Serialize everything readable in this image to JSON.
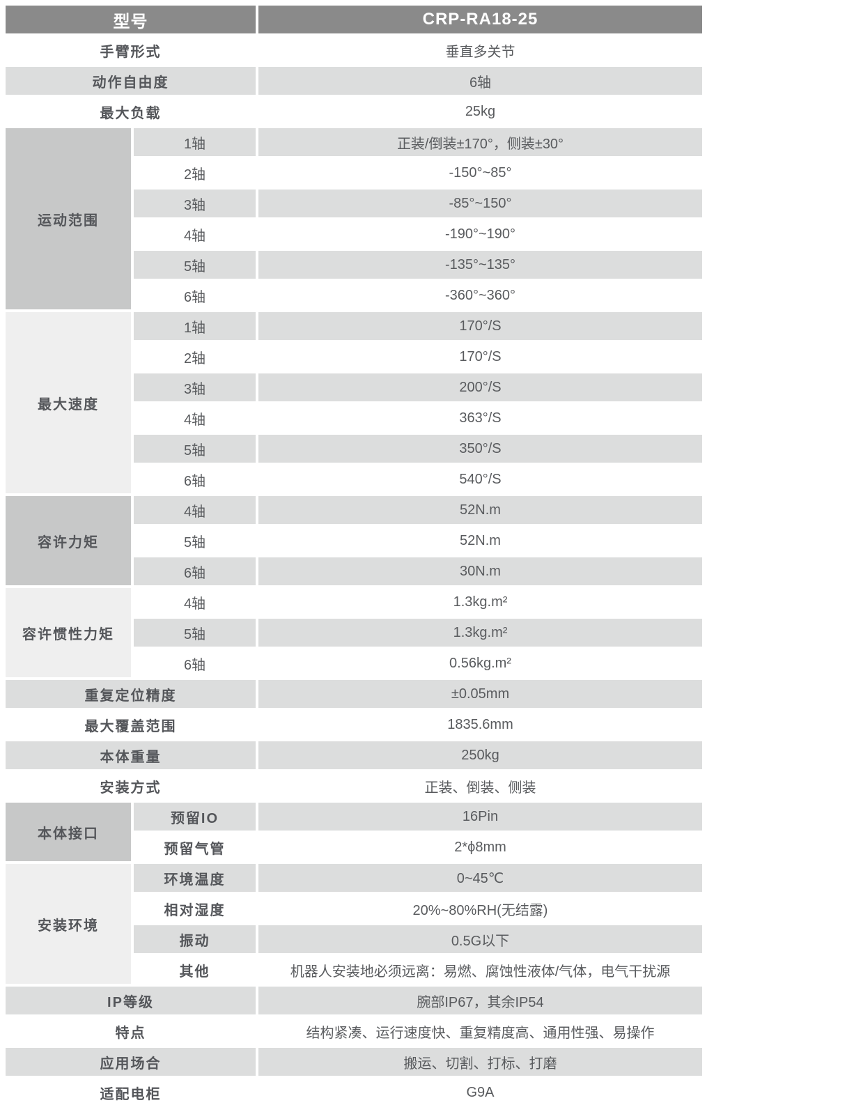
{
  "table": {
    "header": {
      "label": "型号",
      "value": "CRP-RA18-25"
    },
    "sections": [
      {
        "kind": "simple",
        "label": "手臂形式",
        "value": "垂直多关节"
      },
      {
        "kind": "simple",
        "label": "动作自由度",
        "value": "6轴"
      },
      {
        "kind": "simple",
        "label": "最大负载",
        "value": "25kg"
      },
      {
        "kind": "group",
        "label": "运动范围",
        "shade": "dark",
        "bold_sub": false,
        "rows": [
          {
            "sub": "1轴",
            "value": "正装/倒装±170°，侧装±30°"
          },
          {
            "sub": "2轴",
            "value": "-150°~85°"
          },
          {
            "sub": "3轴",
            "value": "-85°~150°"
          },
          {
            "sub": "4轴",
            "value": "-190°~190°"
          },
          {
            "sub": "5轴",
            "value": "-135°~135°"
          },
          {
            "sub": "6轴",
            "value": "-360°~360°"
          }
        ]
      },
      {
        "kind": "group",
        "label": "最大速度",
        "shade": "light",
        "bold_sub": false,
        "rows": [
          {
            "sub": "1轴",
            "value": "170°/S"
          },
          {
            "sub": "2轴",
            "value": "170°/S"
          },
          {
            "sub": "3轴",
            "value": "200°/S"
          },
          {
            "sub": "4轴",
            "value": "363°/S"
          },
          {
            "sub": "5轴",
            "value": "350°/S"
          },
          {
            "sub": "6轴",
            "value": "540°/S"
          }
        ]
      },
      {
        "kind": "group",
        "label": "容许力矩",
        "shade": "dark",
        "bold_sub": false,
        "rows": [
          {
            "sub": "4轴",
            "value": "52N.m"
          },
          {
            "sub": "5轴",
            "value": "52N.m"
          },
          {
            "sub": "6轴",
            "value": "30N.m"
          }
        ]
      },
      {
        "kind": "group",
        "label": "容许惯性力矩",
        "shade": "light",
        "bold_sub": false,
        "rows": [
          {
            "sub": "4轴",
            "value": "1.3kg.m²"
          },
          {
            "sub": "5轴",
            "value": "1.3kg.m²"
          },
          {
            "sub": "6轴",
            "value": "0.56kg.m²"
          }
        ]
      },
      {
        "kind": "simple",
        "label": "重复定位精度",
        "value": "±0.05mm"
      },
      {
        "kind": "simple",
        "label": "最大覆盖范围",
        "value": "1835.6mm"
      },
      {
        "kind": "simple",
        "label": "本体重量",
        "value": "250kg"
      },
      {
        "kind": "simple",
        "label": "安装方式",
        "value": "正装、倒装、侧装"
      },
      {
        "kind": "group",
        "label": "本体接口",
        "shade": "dark",
        "bold_sub": true,
        "rows": [
          {
            "sub": "预留IO",
            "value": "16Pin"
          },
          {
            "sub": "预留气管",
            "value": "2*ϕ8mm"
          }
        ]
      },
      {
        "kind": "group",
        "label": "安装环境",
        "shade": "light",
        "bold_sub": true,
        "rows": [
          {
            "sub": "环境温度",
            "value": "0~45℃"
          },
          {
            "sub": "相对湿度",
            "value": "20%~80%RH(无结露)"
          },
          {
            "sub": "振动",
            "value": "0.5G以下"
          },
          {
            "sub": "其他",
            "value": "机器人安装地必须远离：易燃、腐蚀性液体/气体，电气干扰源"
          }
        ]
      },
      {
        "kind": "simple",
        "label": "IP等级",
        "value": "腕部IP67，其余IP54"
      },
      {
        "kind": "simple",
        "label": "特点",
        "value": "结构紧凑、运行速度快、重复精度高、通用性强、易操作"
      },
      {
        "kind": "simple",
        "label": "应用场合",
        "value": "搬运、切割、打标、打磨"
      },
      {
        "kind": "simple",
        "label": "适配电柜",
        "value": "G9A"
      }
    ],
    "colors": {
      "header_bg": "#8a8a8a",
      "header_text": "#ffffff",
      "stripe_gray": "#dcdddd",
      "stripe_white": "#ffffff",
      "group_dark": "#c7c8c8",
      "group_light": "#efefef",
      "label_text": "#54565a",
      "value_text": "#595b5e"
    }
  }
}
